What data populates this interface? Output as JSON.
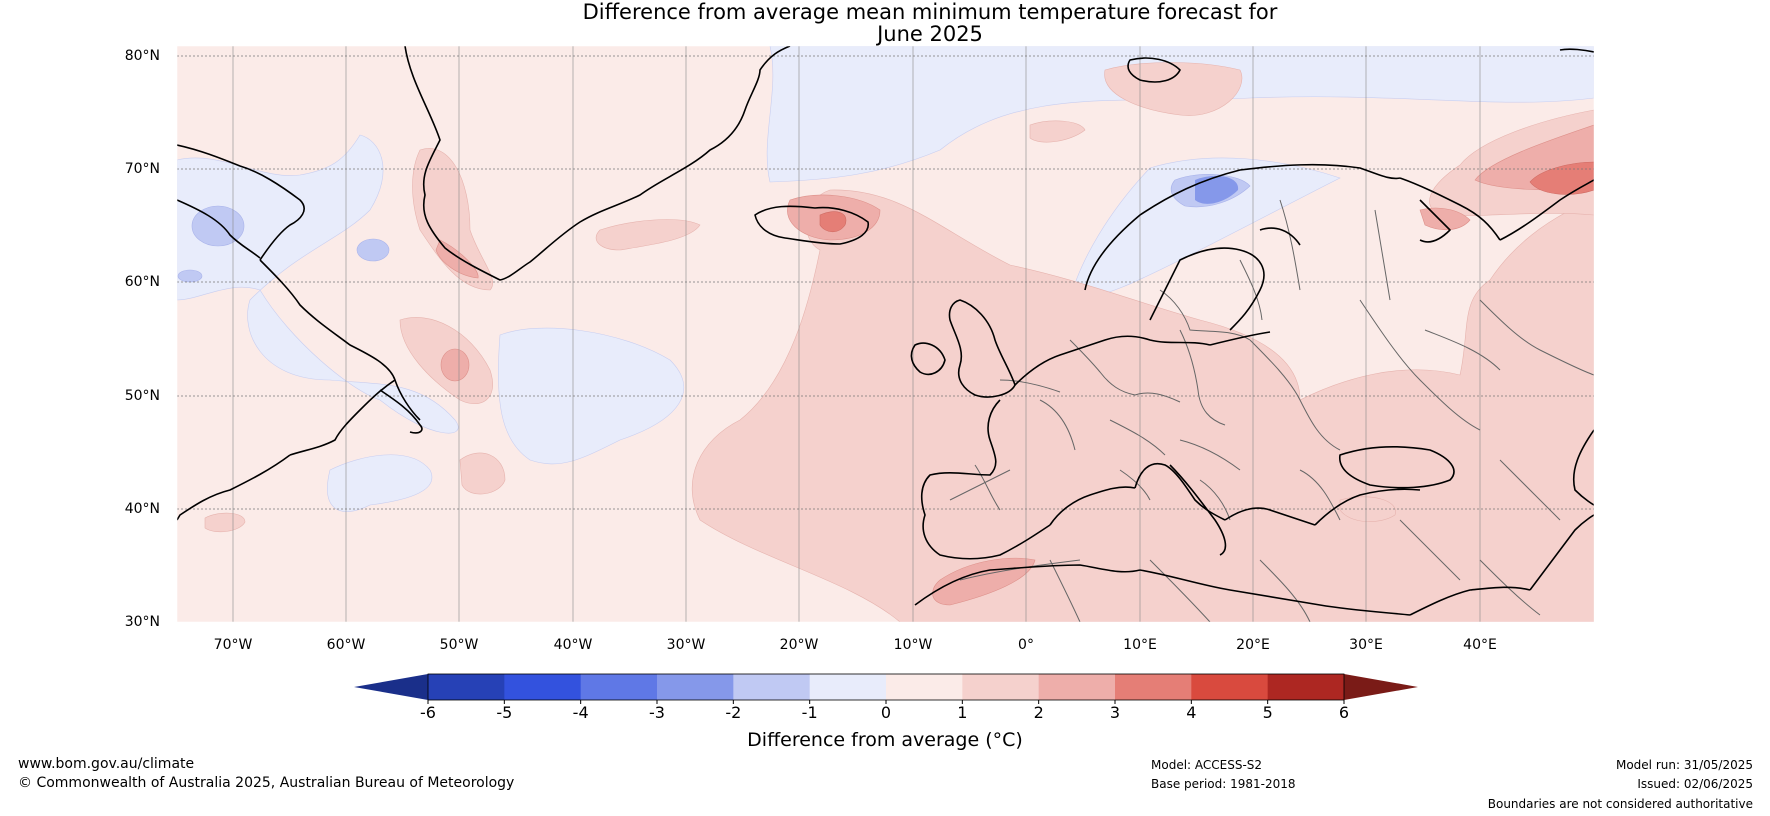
{
  "title_line1": "Difference from average mean minimum temperature forecast for",
  "title_line2": "June 2025",
  "map": {
    "lat_labels": [
      "80°N",
      "70°N",
      "60°N",
      "50°N",
      "40°N",
      "30°N"
    ],
    "lon_labels": [
      "70°W",
      "60°W",
      "50°W",
      "40°W",
      "30°W",
      "20°W",
      "10°W",
      "0°",
      "10°E",
      "20°E",
      "30°E",
      "40°E"
    ],
    "extent": {
      "lon_min": -75,
      "lon_max": 50,
      "lat_min": 30,
      "lat_max": 81
    }
  },
  "colorbar": {
    "ticks": [
      "-6",
      "-5",
      "-4",
      "-3",
      "-2",
      "-1",
      "0",
      "1",
      "2",
      "3",
      "4",
      "5",
      "6"
    ],
    "colors": [
      "#1a2f8a",
      "#2641b6",
      "#3352de",
      "#5f78e6",
      "#8598ea",
      "#c0c9f3",
      "#e8ecfb",
      "#fbebe8",
      "#f5d1cd",
      "#eeaeaa",
      "#e57e76",
      "#d94a3e",
      "#ad2722",
      "#7a1b17"
    ],
    "label": "Difference from average (°C)"
  },
  "footer": {
    "website": "www.bom.gov.au/climate",
    "copyright": "© Commonwealth of Australia 2025, Australian Bureau of Meteorology",
    "model": "Model: ACCESS-S2",
    "base_period": "Base period: 1981-2018",
    "model_run": "Model run: 31/05/2025",
    "issued": "Issued: 02/06/2025",
    "disclaimer": "Boundaries are not considered authoritative"
  }
}
